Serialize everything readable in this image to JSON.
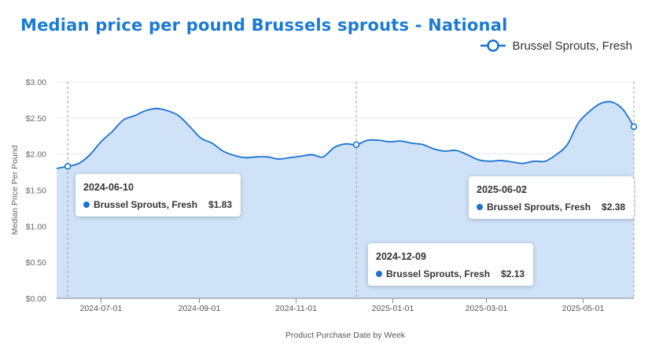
{
  "title": "Median price per pound Brussels sprouts - National",
  "legend": {
    "label": "Brussel Sprouts, Fresh"
  },
  "colors": {
    "title": "#1a7ad4",
    "line": "#1a73d0",
    "area": "#cfe2f8",
    "grid": "#e4e8ee"
  },
  "tooltips": [
    {
      "date": "2024-06-10",
      "series": "Brussel Sprouts, Fresh",
      "value": "$1.83"
    },
    {
      "date": "2024-12-09",
      "series": "Brussel Sprouts, Fresh",
      "value": "$2.13"
    },
    {
      "date": "2025-06-02",
      "series": "Brussel Sprouts, Fresh",
      "value": "$2.38"
    }
  ],
  "chart_data": {
    "type": "area",
    "title": "Median price per pound Brussels sprouts - National",
    "xlabel": "Product Purchase Date by Week",
    "ylabel": "Median Price Per Pound",
    "ylim": [
      0,
      3
    ],
    "xlim": [
      "2024-06-03",
      "2025-06-02"
    ],
    "y_ticks": [
      "$0.00",
      "$0.50",
      "$1.00",
      "$1.50",
      "$2.00",
      "$2.50",
      "$3.00"
    ],
    "x_ticks": [
      {
        "date": "2024-07-01",
        "label": "2024-07-01"
      },
      {
        "date": "2024-09-01",
        "label": "2024-09-01"
      },
      {
        "date": "2024-11-01",
        "label": "2024-11-01"
      },
      {
        "date": "2025-01-01",
        "label": "2025-01-01"
      },
      {
        "date": "2025-03-01",
        "label": "2025-03-01"
      },
      {
        "date": "2025-05-01",
        "label": "2025-05-01"
      }
    ],
    "grid": true,
    "legend_position": "top-right",
    "series": [
      {
        "name": "Brussel Sprouts, Fresh",
        "x": [
          "2024-06-03",
          "2024-06-10",
          "2024-06-17",
          "2024-06-24",
          "2024-07-01",
          "2024-07-08",
          "2024-07-15",
          "2024-07-22",
          "2024-07-29",
          "2024-08-05",
          "2024-08-12",
          "2024-08-19",
          "2024-08-26",
          "2024-09-02",
          "2024-09-09",
          "2024-09-16",
          "2024-09-23",
          "2024-09-30",
          "2024-10-07",
          "2024-10-14",
          "2024-10-21",
          "2024-10-28",
          "2024-11-04",
          "2024-11-11",
          "2024-11-18",
          "2024-11-25",
          "2024-12-02",
          "2024-12-09",
          "2024-12-16",
          "2024-12-23",
          "2024-12-30",
          "2025-01-06",
          "2025-01-13",
          "2025-01-20",
          "2025-01-27",
          "2025-02-03",
          "2025-02-10",
          "2025-02-17",
          "2025-02-24",
          "2025-03-03",
          "2025-03-10",
          "2025-03-17",
          "2025-03-24",
          "2025-03-31",
          "2025-04-07",
          "2025-04-14",
          "2025-04-21",
          "2025-04-28",
          "2025-05-05",
          "2025-05-12",
          "2025-05-19",
          "2025-05-26",
          "2025-06-02"
        ],
        "values": [
          1.8,
          1.83,
          1.87,
          1.99,
          2.17,
          2.31,
          2.47,
          2.53,
          2.6,
          2.63,
          2.6,
          2.53,
          2.38,
          2.22,
          2.15,
          2.04,
          1.98,
          1.95,
          1.96,
          1.96,
          1.93,
          1.95,
          1.97,
          1.99,
          1.96,
          2.09,
          2.14,
          2.13,
          2.19,
          2.19,
          2.17,
          2.18,
          2.15,
          2.13,
          2.07,
          2.04,
          2.05,
          1.99,
          1.92,
          1.9,
          1.91,
          1.89,
          1.87,
          1.9,
          1.9,
          1.99,
          2.13,
          2.43,
          2.59,
          2.7,
          2.72,
          2.62,
          2.38
        ]
      }
    ],
    "highlighted_dates": [
      "2024-06-10",
      "2024-12-09",
      "2025-06-02"
    ]
  }
}
